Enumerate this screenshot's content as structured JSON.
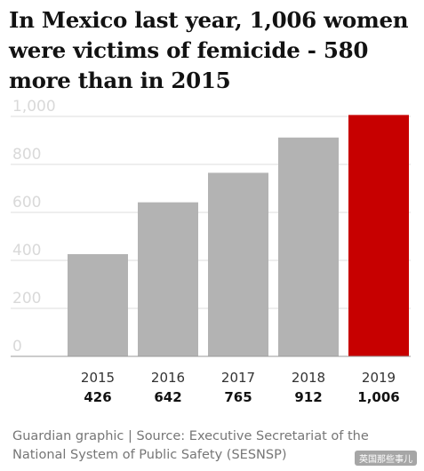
{
  "title": "In Mexico last year, 1,006 women were victims of femicide - 580 more than in 2015",
  "source": "Guardian graphic | Source: Executive Secretariat of the National System of Public Safety (SESNSP)",
  "watermark": "英国那些事儿",
  "colors": {
    "bar": "#b3b3b3",
    "highlight": "#c70000",
    "grid": "#dcdcdc",
    "tick_text": "#d9d9d9",
    "label_text": "#333333"
  },
  "chart_data": {
    "type": "bar",
    "title": "In Mexico last year, 1,006 women were victims of femicide - 580 more than in 2015",
    "xlabel": "",
    "ylabel": "",
    "categories": [
      "2015",
      "2016",
      "2017",
      "2018",
      "2019"
    ],
    "values": [
      426,
      642,
      765,
      912,
      1006
    ],
    "value_labels": [
      "426",
      "642",
      "765",
      "912",
      "1,006"
    ],
    "highlight_category": "2019",
    "ylim": [
      0,
      1000
    ],
    "yticks": [
      0,
      200,
      400,
      600,
      800,
      1000
    ],
    "ytick_labels": [
      "0",
      "200",
      "400",
      "600",
      "800",
      "1,000"
    ],
    "grid": true,
    "legend": "none"
  }
}
